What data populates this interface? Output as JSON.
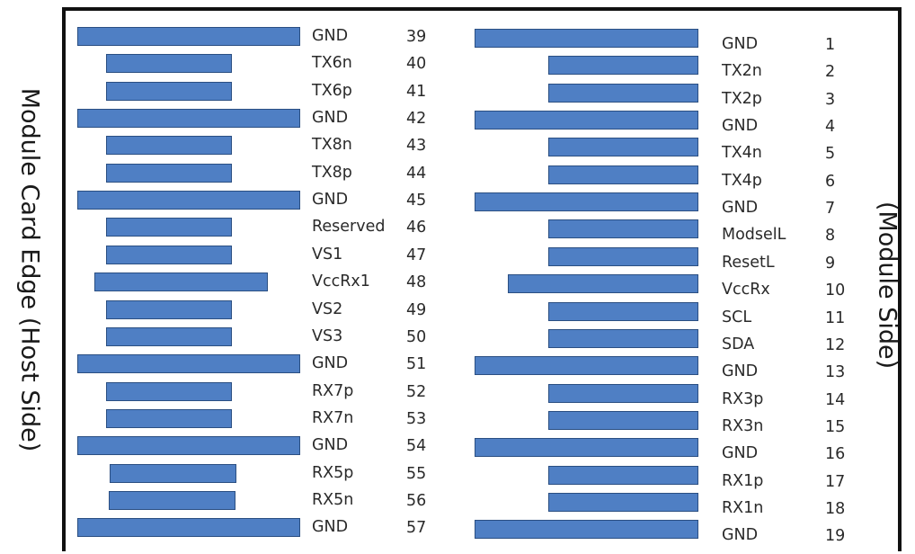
{
  "labels": {
    "host_side": "Module Card Edge (Host Side)",
    "module_side": "(Module Side)"
  },
  "colors": {
    "pad_fill": "#4f7fc4",
    "pad_border": "#2b4f82",
    "frame": "#111111"
  },
  "host_side_pins": [
    {
      "signal": "GND",
      "number": "39",
      "pad": "long"
    },
    {
      "signal": "TX6n",
      "number": "40",
      "pad": "short"
    },
    {
      "signal": "TX6p",
      "number": "41",
      "pad": "short"
    },
    {
      "signal": "GND",
      "number": "42",
      "pad": "long"
    },
    {
      "signal": "TX8n",
      "number": "43",
      "pad": "short"
    },
    {
      "signal": "TX8p",
      "number": "44",
      "pad": "short"
    },
    {
      "signal": "GND",
      "number": "45",
      "pad": "long"
    },
    {
      "signal": "Reserved",
      "number": "46",
      "pad": "short"
    },
    {
      "signal": "VS1",
      "number": "47",
      "pad": "short"
    },
    {
      "signal": "VccRx1",
      "number": "48",
      "pad": "medium"
    },
    {
      "signal": "VS2",
      "number": "49",
      "pad": "short"
    },
    {
      "signal": "VS3",
      "number": "50",
      "pad": "short"
    },
    {
      "signal": "GND",
      "number": "51",
      "pad": "long"
    },
    {
      "signal": "RX7p",
      "number": "52",
      "pad": "short"
    },
    {
      "signal": "RX7n",
      "number": "53",
      "pad": "short"
    },
    {
      "signal": "GND",
      "number": "54",
      "pad": "long"
    },
    {
      "signal": "RX5p",
      "number": "55",
      "pad": "short"
    },
    {
      "signal": "RX5n",
      "number": "56",
      "pad": "short"
    },
    {
      "signal": "GND",
      "number": "57",
      "pad": "long"
    }
  ],
  "module_side_pins": [
    {
      "signal": "GND",
      "number": "1",
      "pad": "long"
    },
    {
      "signal": "TX2n",
      "number": "2",
      "pad": "short"
    },
    {
      "signal": "TX2p",
      "number": "3",
      "pad": "short"
    },
    {
      "signal": "GND",
      "number": "4",
      "pad": "long"
    },
    {
      "signal": "TX4n",
      "number": "5",
      "pad": "short"
    },
    {
      "signal": "TX4p",
      "number": "6",
      "pad": "short"
    },
    {
      "signal": "GND",
      "number": "7",
      "pad": "long"
    },
    {
      "signal": "ModselL",
      "number": "8",
      "pad": "short"
    },
    {
      "signal": "ResetL",
      "number": "9",
      "pad": "short"
    },
    {
      "signal": "VccRx",
      "number": "10",
      "pad": "medium"
    },
    {
      "signal": "SCL",
      "number": "11",
      "pad": "short"
    },
    {
      "signal": "SDA",
      "number": "12",
      "pad": "short"
    },
    {
      "signal": "GND",
      "number": "13",
      "pad": "long"
    },
    {
      "signal": "RX3p",
      "number": "14",
      "pad": "short"
    },
    {
      "signal": "RX3n",
      "number": "15",
      "pad": "short"
    },
    {
      "signal": "GND",
      "number": "16",
      "pad": "long"
    },
    {
      "signal": "RX1p",
      "number": "17",
      "pad": "short"
    },
    {
      "signal": "RX1n",
      "number": "18",
      "pad": "short"
    },
    {
      "signal": "GND",
      "number": "19",
      "pad": "long"
    }
  ]
}
